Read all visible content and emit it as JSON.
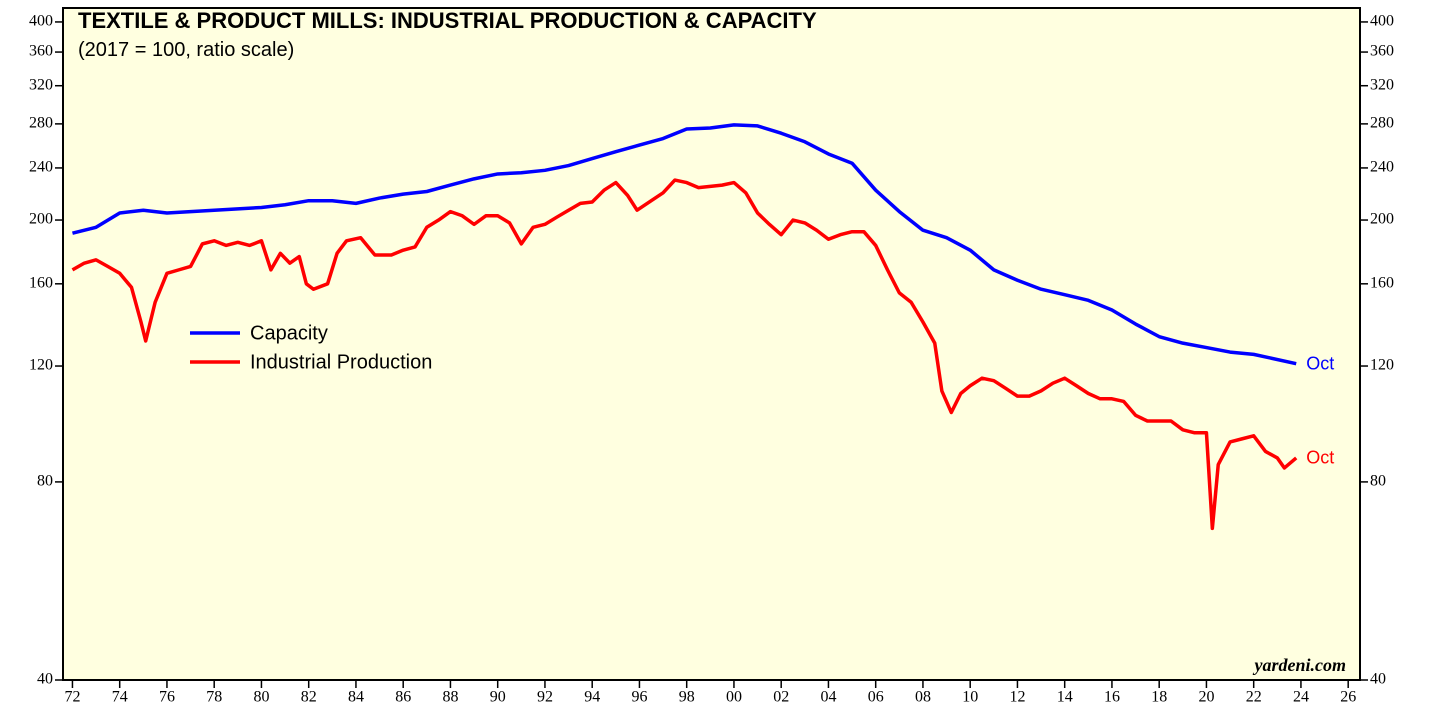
{
  "chart_data": {
    "type": "line",
    "title": "TEXTILE & PRODUCT MILLS: INDUSTRIAL PRODUCTION & CAPACITY",
    "subtitle": "(2017 = 100, ratio scale)",
    "source": "yardeni.com",
    "log_scale": true,
    "legend_position": "upper left",
    "background": "#ffffe0",
    "xlim": [
      1971.6,
      2026.5
    ],
    "ylim": [
      40,
      420
    ],
    "yticks": [
      40,
      80,
      120,
      160,
      200,
      240,
      280,
      320,
      360,
      400
    ],
    "xticks": [
      {
        "value": 1972,
        "label": "72"
      },
      {
        "value": 1974,
        "label": "74"
      },
      {
        "value": 1976,
        "label": "76"
      },
      {
        "value": 1978,
        "label": "78"
      },
      {
        "value": 1980,
        "label": "80"
      },
      {
        "value": 1982,
        "label": "82"
      },
      {
        "value": 1984,
        "label": "84"
      },
      {
        "value": 1986,
        "label": "86"
      },
      {
        "value": 1988,
        "label": "88"
      },
      {
        "value": 1990,
        "label": "90"
      },
      {
        "value": 1992,
        "label": "92"
      },
      {
        "value": 1994,
        "label": "94"
      },
      {
        "value": 1996,
        "label": "96"
      },
      {
        "value": 1998,
        "label": "98"
      },
      {
        "value": 2000,
        "label": "00"
      },
      {
        "value": 2002,
        "label": "02"
      },
      {
        "value": 2004,
        "label": "04"
      },
      {
        "value": 2006,
        "label": "06"
      },
      {
        "value": 2008,
        "label": "08"
      },
      {
        "value": 2010,
        "label": "10"
      },
      {
        "value": 2012,
        "label": "12"
      },
      {
        "value": 2014,
        "label": "14"
      },
      {
        "value": 2016,
        "label": "16"
      },
      {
        "value": 2018,
        "label": "18"
      },
      {
        "value": 2020,
        "label": "20"
      },
      {
        "value": 2022,
        "label": "22"
      },
      {
        "value": 2024,
        "label": "24"
      },
      {
        "value": 2026,
        "label": "26"
      }
    ],
    "series": [
      {
        "name": "Capacity",
        "color": "#0000ff",
        "end_label": "Oct",
        "x": [
          1972,
          1973,
          1974,
          1975,
          1976,
          1977,
          1978,
          1979,
          1980,
          1981,
          1982,
          1983,
          1984,
          1985,
          1986,
          1987,
          1988,
          1989,
          1990,
          1991,
          1992,
          1993,
          1994,
          1995,
          1996,
          1997,
          1998,
          1999,
          2000,
          2001,
          2002,
          2003,
          2004,
          2005,
          2006,
          2007,
          2008,
          2009,
          2010,
          2011,
          2012,
          2013,
          2014,
          2015,
          2016,
          2017,
          2018,
          2019,
          2020,
          2021,
          2022,
          2023.8
        ],
        "values": [
          191,
          195,
          205,
          207,
          205,
          206,
          207,
          208,
          209,
          211,
          214,
          214,
          212,
          216,
          219,
          221,
          226,
          231,
          235,
          236,
          238,
          242,
          248,
          254,
          260,
          266,
          275,
          276,
          279,
          278,
          271,
          263,
          252,
          244,
          222,
          206,
          193,
          188,
          180,
          168,
          162,
          157,
          154,
          151,
          146,
          139,
          133,
          130,
          128,
          126,
          125,
          121
        ]
      },
      {
        "name": "Industrial Production",
        "color": "#ff0000",
        "end_label": "Oct",
        "x": [
          1972,
          1972.5,
          1973,
          1973.5,
          1974,
          1974.5,
          1974.9,
          1975.1,
          1975.5,
          1976,
          1976.5,
          1977,
          1977.5,
          1978,
          1978.5,
          1979,
          1979.5,
          1980,
          1980.4,
          1980.8,
          1981.2,
          1981.6,
          1981.9,
          1982.2,
          1982.8,
          1983.2,
          1983.6,
          1984.2,
          1984.8,
          1985.5,
          1986,
          1986.5,
          1987,
          1987.5,
          1988,
          1988.5,
          1989,
          1989.5,
          1990,
          1990.5,
          1991,
          1991.5,
          1992,
          1992.5,
          1993,
          1993.5,
          1994,
          1994.5,
          1995,
          1995.5,
          1995.9,
          1996.5,
          1997,
          1997.5,
          1998,
          1998.5,
          1999,
          1999.5,
          2000,
          2000.5,
          2001,
          2001.5,
          2002,
          2002.5,
          2003,
          2003.5,
          2004,
          2004.5,
          2005,
          2005.5,
          2006,
          2006.5,
          2007,
          2007.5,
          2008,
          2008.5,
          2008.8,
          2009.2,
          2009.6,
          2010,
          2010.5,
          2011,
          2011.5,
          2012,
          2012.5,
          2013,
          2013.5,
          2014,
          2014.5,
          2015,
          2015.5,
          2016,
          2016.5,
          2017,
          2017.5,
          2018,
          2018.5,
          2019,
          2019.5,
          2020,
          2020.25,
          2020.5,
          2021,
          2021.5,
          2022,
          2022.5,
          2023,
          2023.3,
          2023.8
        ],
        "values": [
          168,
          172,
          174,
          170,
          166,
          158,
          140,
          131,
          150,
          166,
          168,
          170,
          184,
          186,
          183,
          185,
          183,
          186,
          168,
          178,
          172,
          176,
          160,
          157,
          160,
          178,
          186,
          188,
          177,
          177,
          180,
          182,
          195,
          200,
          206,
          203,
          197,
          203,
          203,
          198,
          184,
          195,
          197,
          202,
          207,
          212,
          213,
          222,
          228,
          218,
          207,
          214,
          220,
          230,
          228,
          224,
          225,
          226,
          228,
          220,
          205,
          197,
          190,
          200,
          198,
          193,
          187,
          190,
          192,
          192,
          183,
          168,
          155,
          150,
          140,
          130,
          110,
          102,
          109,
          112,
          115,
          114,
          111,
          108,
          108,
          110,
          113,
          115,
          112,
          109,
          107,
          107,
          106,
          101,
          99,
          99,
          99,
          96,
          95,
          95,
          68,
          85,
          92,
          93,
          94,
          89,
          87,
          84,
          87
        ]
      }
    ]
  }
}
